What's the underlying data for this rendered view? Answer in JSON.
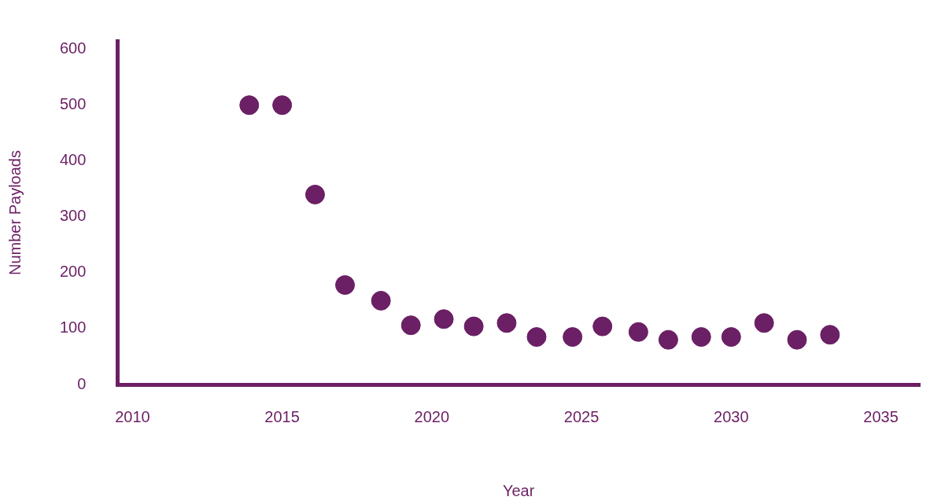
{
  "chart_data": {
    "type": "scatter",
    "xlabel": "Year",
    "ylabel": "Number Payloads",
    "x": [
      2013.9,
      2015.0,
      2016.1,
      2017.1,
      2018.3,
      2019.3,
      2020.4,
      2021.4,
      2022.5,
      2023.5,
      2024.7,
      2025.7,
      2026.9,
      2027.9,
      2029.0,
      2030.0,
      2031.1,
      2032.2,
      2033.3
    ],
    "values": [
      500,
      500,
      340,
      178,
      150,
      106,
      117,
      104,
      110,
      85,
      85,
      104,
      94,
      80,
      85,
      85,
      110,
      80,
      89
    ],
    "color": "#6b1f64",
    "xlim": [
      2009.5,
      2036.3
    ],
    "xticks": [
      2010,
      2015,
      2020,
      2025,
      2030,
      2035
    ],
    "ylim": [
      0,
      615
    ],
    "yticks": [
      0,
      100,
      200,
      300,
      400,
      500,
      600
    ],
    "grid": false,
    "legend": false,
    "marker": "circle"
  }
}
